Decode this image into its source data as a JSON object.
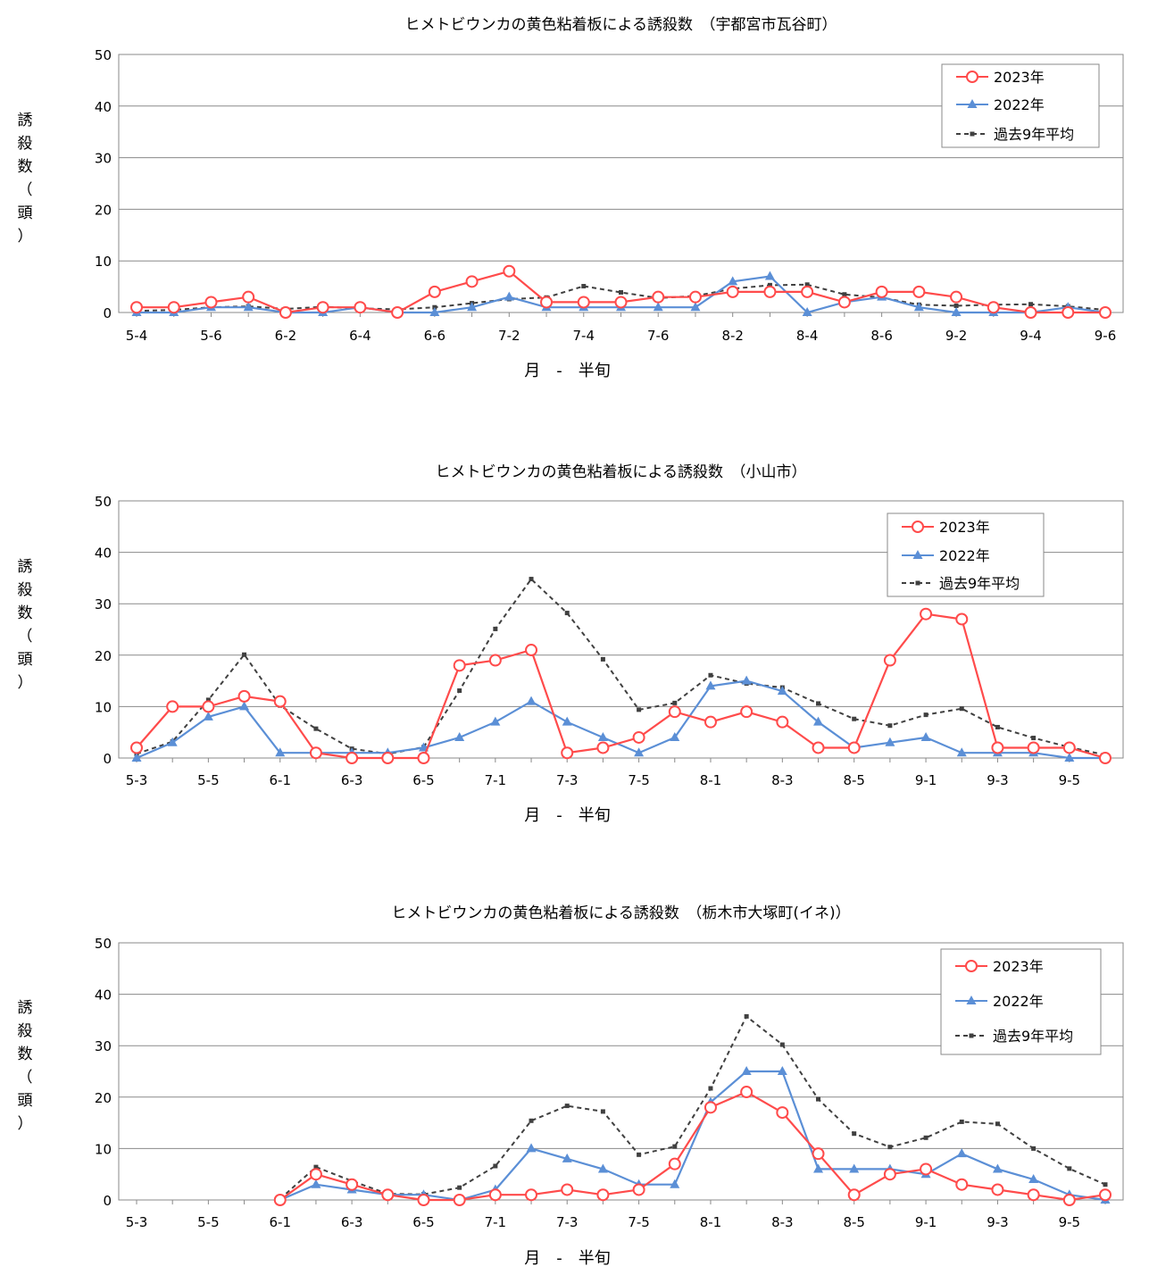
{
  "chart_data": [
    {
      "type": "line",
      "title": "ヒメトビウンカの黄色粘着板による誘殺数　（宇都宮市瓦谷町）",
      "xlabel": "月　-　半旬",
      "ylabel": "誘殺数（頭）",
      "ylim": [
        0,
        50
      ],
      "yticks": [
        0,
        10,
        20,
        30,
        40,
        50
      ],
      "grid": true,
      "legend": "top-right",
      "categories": [
        "5-4",
        "5-5",
        "5-6",
        "6-1",
        "6-2",
        "6-3",
        "6-4",
        "6-5",
        "6-6",
        "7-1",
        "7-2",
        "7-3",
        "7-4",
        "7-5",
        "7-6",
        "8-1",
        "8-2",
        "8-3",
        "8-4",
        "8-5",
        "8-6",
        "9-1",
        "9-2",
        "9-3",
        "9-4",
        "9-5",
        "9-6"
      ],
      "tick_labels": [
        "5-4",
        "5-6",
        "6-2",
        "6-4",
        "6-6",
        "7-2",
        "7-4",
        "7-6",
        "8-2",
        "8-4",
        "8-6",
        "9-2",
        "9-4",
        "9-6"
      ],
      "series": [
        {
          "name": "2023年",
          "color": "#ff4b4b",
          "marker": "circle",
          "values": [
            1,
            1,
            2,
            3,
            0,
            1,
            1,
            0,
            4,
            6,
            8,
            2,
            2,
            2,
            3,
            3,
            4,
            4,
            4,
            2,
            4,
            4,
            3,
            1,
            0,
            0,
            0
          ]
        },
        {
          "name": "2022年",
          "color": "#5b8fd6",
          "marker": "triangle",
          "values": [
            0,
            0,
            1,
            1,
            0,
            0,
            1,
            0,
            0,
            1,
            3,
            1,
            1,
            1,
            1,
            1,
            6,
            7,
            0,
            2,
            3,
            1,
            0,
            0,
            0,
            1,
            0
          ]
        },
        {
          "name": "過去9年平均",
          "color": "#404040",
          "marker": "square",
          "dashed": true,
          "values": [
            0.3,
            0.5,
            1.0,
            1.2,
            0.7,
            1.1,
            0.8,
            0.6,
            1.0,
            1.8,
            2.6,
            2.9,
            5.1,
            3.9,
            2.8,
            3.2,
            4.6,
            5.3,
            5.4,
            3.5,
            2.9,
            1.5,
            1.3,
            1.5,
            1.6,
            1.2,
            0.5
          ]
        }
      ]
    },
    {
      "type": "line",
      "title": "ヒメトビウンカの黄色粘着板による誘殺数　（小山市）",
      "xlabel": "月　-　半旬",
      "ylabel": "誘殺数（頭）",
      "ylim": [
        0,
        50
      ],
      "yticks": [
        0,
        10,
        20,
        30,
        40,
        50
      ],
      "grid": true,
      "legend": "top-right",
      "categories": [
        "5-3",
        "5-4",
        "5-5",
        "5-6",
        "6-1",
        "6-2",
        "6-3",
        "6-4",
        "6-5",
        "6-6",
        "7-1",
        "7-2",
        "7-3",
        "7-4",
        "7-5",
        "7-6",
        "8-1",
        "8-2",
        "8-3",
        "8-4",
        "8-5",
        "8-6",
        "9-1",
        "9-2",
        "9-3",
        "9-4",
        "9-5",
        "9-6"
      ],
      "tick_labels": [
        "5-3",
        "5-5",
        "6-1",
        "6-3",
        "6-5",
        "7-1",
        "7-3",
        "7-5",
        "8-1",
        "8-3",
        "8-5",
        "9-1",
        "9-3",
        "9-5"
      ],
      "series": [
        {
          "name": "2023年",
          "color": "#ff4b4b",
          "marker": "circle",
          "values": [
            2,
            10,
            10,
            12,
            11,
            1,
            0,
            0,
            0,
            18,
            19,
            21,
            1,
            2,
            4,
            9,
            7,
            9,
            7,
            2,
            2,
            19,
            28,
            27,
            2,
            2,
            2,
            0
          ]
        },
        {
          "name": "2022年",
          "color": "#5b8fd6",
          "marker": "triangle",
          "values": [
            0,
            3,
            8,
            10,
            1,
            1,
            1,
            1,
            2,
            4,
            7,
            11,
            7,
            4,
            1,
            4,
            14,
            15,
            13,
            7,
            2,
            3,
            4,
            1,
            1,
            1,
            0,
            0
          ]
        },
        {
          "name": "過去9年平均",
          "color": "#404040",
          "marker": "square",
          "dashed": true,
          "values": [
            0.8,
            3.2,
            11.3,
            20.1,
            10.2,
            5.7,
            1.8,
            0.8,
            2.1,
            13.1,
            25.1,
            34.8,
            28.2,
            19.2,
            9.4,
            10.7,
            16.1,
            14.5,
            13.7,
            10.6,
            7.6,
            6.3,
            8.4,
            9.6,
            6.0,
            3.9,
            2.1,
            0.6
          ]
        }
      ]
    },
    {
      "type": "line",
      "title": "ヒメトビウンカの黄色粘着板による誘殺数　（栃木市大塚町(イネ)）",
      "xlabel": "月　-　半旬",
      "ylabel": "誘殺数（頭）",
      "ylim": [
        0,
        50
      ],
      "yticks": [
        0,
        10,
        20,
        30,
        40,
        50
      ],
      "grid": true,
      "legend": "top-right",
      "categories": [
        "5-3",
        "5-4",
        "5-5",
        "5-6",
        "6-1",
        "6-2",
        "6-3",
        "6-4",
        "6-5",
        "6-6",
        "7-1",
        "7-2",
        "7-3",
        "7-4",
        "7-5",
        "7-6",
        "8-1",
        "8-2",
        "8-3",
        "8-4",
        "8-5",
        "8-6",
        "9-1",
        "9-2",
        "9-3",
        "9-4",
        "9-5",
        "9-6"
      ],
      "tick_labels": [
        "5-3",
        "5-5",
        "6-1",
        "6-3",
        "6-5",
        "7-1",
        "7-3",
        "7-5",
        "8-1",
        "8-3",
        "8-5",
        "9-1",
        "9-3",
        "9-5"
      ],
      "series": [
        {
          "name": "2023年",
          "color": "#ff4b4b",
          "marker": "circle",
          "values": [
            null,
            null,
            null,
            null,
            0,
            5,
            3,
            1,
            0,
            0,
            1,
            1,
            2,
            1,
            2,
            7,
            18,
            21,
            17,
            9,
            1,
            5,
            6,
            3,
            2,
            1,
            0,
            1
          ]
        },
        {
          "name": "2022年",
          "color": "#5b8fd6",
          "marker": "triangle",
          "values": [
            null,
            null,
            null,
            null,
            0,
            3,
            2,
            1,
            1,
            0,
            2,
            10,
            8,
            6,
            3,
            3,
            19,
            25,
            25,
            6,
            6,
            6,
            5,
            9,
            6,
            4,
            1,
            0
          ]
        },
        {
          "name": "過去9年平均",
          "color": "#404040",
          "marker": "square",
          "dashed": true,
          "values": [
            null,
            null,
            null,
            null,
            0.2,
            6.4,
            3.7,
            1.2,
            1.1,
            2.4,
            6.6,
            15.4,
            18.3,
            17.2,
            8.8,
            10.4,
            21.7,
            35.7,
            30.2,
            19.6,
            12.9,
            10.3,
            12.1,
            15.2,
            14.8,
            10.0,
            6.1,
            3.0
          ]
        }
      ]
    }
  ]
}
